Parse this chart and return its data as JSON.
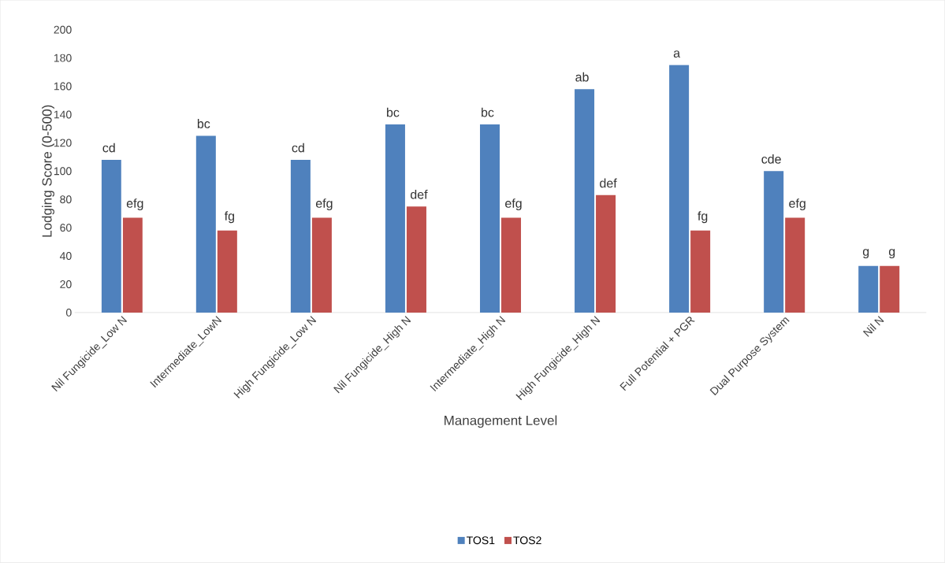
{
  "chart_data": {
    "type": "bar",
    "xlabel": "Management Level",
    "ylabel": "Lodging Score (0-500)",
    "categories": [
      "Nil Fungicide_Low N",
      "Intermediate_LowN",
      "High Fungicide_Low N",
      "Nil Fungicide_High N",
      "Intermediate_High N",
      "High Fungicide_High N",
      "Full Potential + PGR",
      "Dual Purpose System",
      "Nil N"
    ],
    "series": [
      {
        "name": "TOS1",
        "color": "#4f81bd",
        "values": [
          108,
          125,
          108,
          133,
          133,
          158,
          175,
          100,
          33
        ],
        "value_labels": [
          "cd",
          "bc",
          "cd",
          "bc",
          "bc",
          "ab",
          "a",
          "cde",
          "g"
        ]
      },
      {
        "name": "TOS2",
        "color": "#c0504d",
        "values": [
          67,
          58,
          67,
          75,
          67,
          83,
          58,
          67,
          33
        ],
        "value_labels": [
          "efg",
          "fg",
          "efg",
          "def",
          "efg",
          "def",
          "fg",
          "efg",
          "g"
        ]
      }
    ],
    "ylim": [
      0,
      200
    ],
    "yticks": [
      0,
      20,
      40,
      60,
      80,
      100,
      120,
      140,
      160,
      180,
      200
    ],
    "legend": "bottom"
  }
}
